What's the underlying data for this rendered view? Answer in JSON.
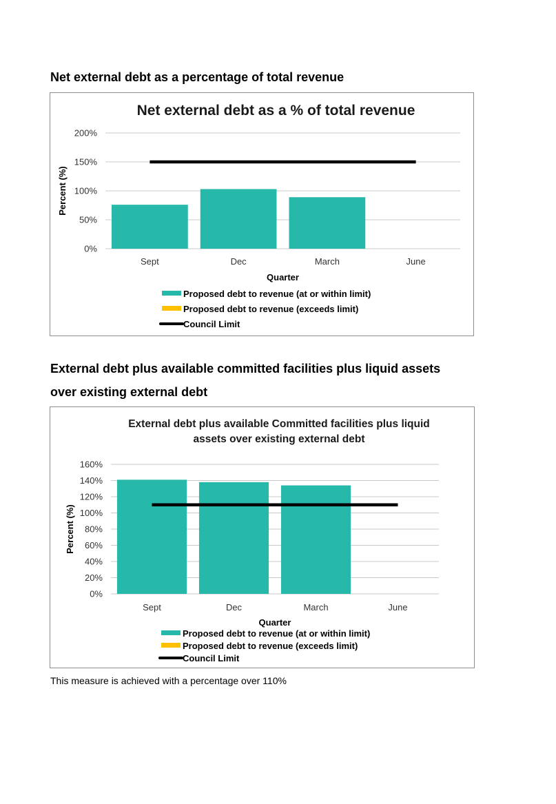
{
  "section1": {
    "heading": "Net external debt as a percentage of total revenue"
  },
  "section2": {
    "heading_line1": "External debt plus available committed facilities plus liquid assets",
    "heading_line2": "over existing external debt"
  },
  "caption": "This measure is achieved with a percentage over 110%",
  "colors": {
    "within_limit": "#26b8a8",
    "exceeds_limit": "#ffc000",
    "council_limit": "#000000",
    "gridline": "#c8c8c8"
  },
  "chart_data": [
    {
      "type": "bar",
      "title": "Net external debt as a % of total revenue",
      "xlabel": "Quarter",
      "ylabel": "Percent (%)",
      "categories": [
        "Sept",
        "Dec",
        "March",
        "June"
      ],
      "ylim": [
        0,
        200
      ],
      "yticks": [
        0,
        50,
        100,
        150,
        200
      ],
      "ytick_labels": [
        "0%",
        "50%",
        "100%",
        "150%",
        "200%"
      ],
      "grid": true,
      "legend_position": "bottom",
      "series": [
        {
          "name": "Proposed debt to revenue (at or within limit)",
          "kind": "bar",
          "values": [
            76,
            103,
            89,
            null
          ]
        },
        {
          "name": "Proposed  debt to revenue (exceeds limit)",
          "kind": "bar",
          "values": [
            null,
            null,
            null,
            null
          ]
        },
        {
          "name": "Council Limit",
          "kind": "line",
          "values": [
            150,
            150,
            150,
            150
          ]
        }
      ]
    },
    {
      "type": "bar",
      "title": "External debt plus available Committed facilities plus liquid assets over existing external debt",
      "title_lines": [
        "External debt plus available Committed facilities plus liquid",
        "assets over existing external debt"
      ],
      "xlabel": "Quarter",
      "ylabel": "Percent (%)",
      "categories": [
        "Sept",
        "Dec",
        "March",
        "June"
      ],
      "ylim": [
        0,
        160
      ],
      "yticks": [
        0,
        20,
        40,
        60,
        80,
        100,
        120,
        140,
        160
      ],
      "ytick_labels": [
        "0%",
        "20%",
        "40%",
        "60%",
        "80%",
        "100%",
        "120%",
        "140%",
        "160%"
      ],
      "grid": true,
      "legend_position": "bottom",
      "series": [
        {
          "name": "Proposed debt to revenue (at or within limit)",
          "kind": "bar",
          "values": [
            141,
            138,
            134,
            null
          ]
        },
        {
          "name": "Proposed  debt to revenue (exceeds limit)",
          "kind": "bar",
          "values": [
            null,
            null,
            null,
            null
          ]
        },
        {
          "name": "Council Limit",
          "kind": "line",
          "values": [
            110,
            110,
            110,
            110
          ]
        }
      ]
    }
  ]
}
